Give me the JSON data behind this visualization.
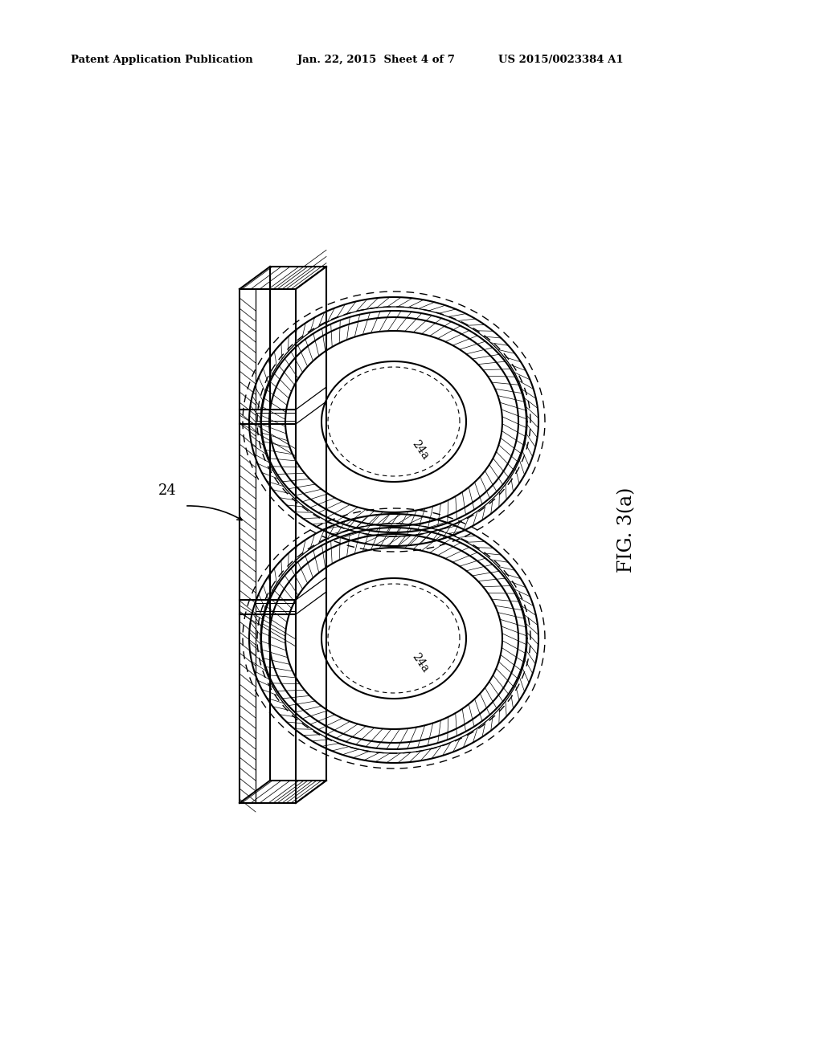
{
  "header_left": "Patent Application Publication",
  "header_mid": "Jan. 22, 2015  Sheet 4 of 7",
  "header_right": "US 2015/0023384 A1",
  "fig_label": "FIG. 3(a)",
  "label_24": "24",
  "label_24a_top": "24a",
  "label_24a_bot": "24a",
  "bg_color": "#ffffff",
  "line_color": "#000000"
}
